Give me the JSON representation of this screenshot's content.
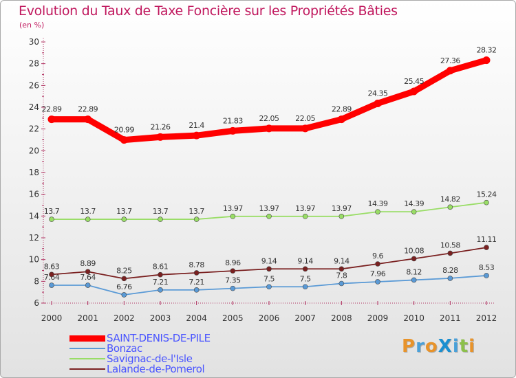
{
  "title": "Evolution du Taux de Taxe Foncière sur les Propriétés Bâties",
  "unit_label": "(en %)",
  "logo": {
    "text": "ProXiti",
    "letters": [
      {
        "ch": "P",
        "color": "#e8932a"
      },
      {
        "ch": "r",
        "color": "#4aa0d8"
      },
      {
        "ch": "o",
        "color": "#e8932a"
      },
      {
        "ch": "X",
        "color": "#1a8fd0"
      },
      {
        "ch": "i",
        "color": "#4aa0d8"
      },
      {
        "ch": "t",
        "color": "#8cc04a"
      },
      {
        "ch": "i",
        "color": "#e8932a"
      }
    ]
  },
  "chart_data": {
    "type": "line",
    "title": "Evolution du Taux de Taxe Foncière sur les Propriétés Bâties",
    "ylabel": "(en %)",
    "x": [
      "2000",
      "2001",
      "2002",
      "2003",
      "2004",
      "2005",
      "2006",
      "2007",
      "2008",
      "2009",
      "2010",
      "2011",
      "2012"
    ],
    "ylim": [
      6,
      30
    ],
    "yticks": [
      "6",
      "8",
      "10",
      "12",
      "14",
      "16",
      "18",
      "20",
      "22",
      "24",
      "26",
      "28",
      "30"
    ],
    "grid": false,
    "legend_position": "bottom-left",
    "series": [
      {
        "name": "SAINT-DENIS-DE-PILE",
        "color": "#ff0000",
        "width": "thick",
        "values": [
          22.89,
          22.89,
          20.99,
          21.26,
          21.4,
          21.83,
          22.05,
          22.05,
          22.89,
          24.35,
          25.45,
          27.36,
          28.32
        ],
        "labels": [
          "22.89",
          "22.89",
          "20.99",
          "21.26",
          "21.4",
          "21.83",
          "22.05",
          "22.05",
          "22.89",
          "24.35",
          "25.45",
          "27.36",
          "28.32"
        ]
      },
      {
        "name": "Bonzac",
        "color": "#5a9ad6",
        "width": "thin",
        "values": [
          7.64,
          7.64,
          6.76,
          7.21,
          7.21,
          7.35,
          7.5,
          7.5,
          7.8,
          7.96,
          8.12,
          8.28,
          8.53
        ],
        "labels": [
          "7.64",
          "7.64",
          "6.76",
          "7.21",
          "7.21",
          "7.35",
          "7.5",
          "7.5",
          "7.8",
          "7.96",
          "8.12",
          "8.28",
          "8.53"
        ]
      },
      {
        "name": "Savignac-de-l'Isle",
        "color": "#99dd66",
        "width": "thin",
        "values": [
          13.7,
          13.7,
          13.7,
          13.7,
          13.7,
          13.97,
          13.97,
          13.97,
          13.97,
          14.39,
          14.39,
          14.82,
          15.24
        ],
        "labels": [
          "13.7",
          "13.7",
          "13.7",
          "13.7",
          "13.7",
          "13.97",
          "13.97",
          "13.97",
          "13.97",
          "14.39",
          "14.39",
          "14.82",
          "15.24"
        ]
      },
      {
        "name": "Lalande-de-Pomerol",
        "color": "#7a2020",
        "width": "thin",
        "values": [
          8.63,
          8.89,
          8.25,
          8.61,
          8.78,
          8.96,
          9.14,
          9.14,
          9.14,
          9.6,
          10.08,
          10.58,
          11.11
        ],
        "labels": [
          "8.63",
          "8.89",
          "8.25",
          "8.61",
          "8.78",
          "8.96",
          "9.14",
          "9.14",
          "9.14",
          "9.6",
          "10.08",
          "10.58",
          "11.11"
        ]
      }
    ]
  }
}
